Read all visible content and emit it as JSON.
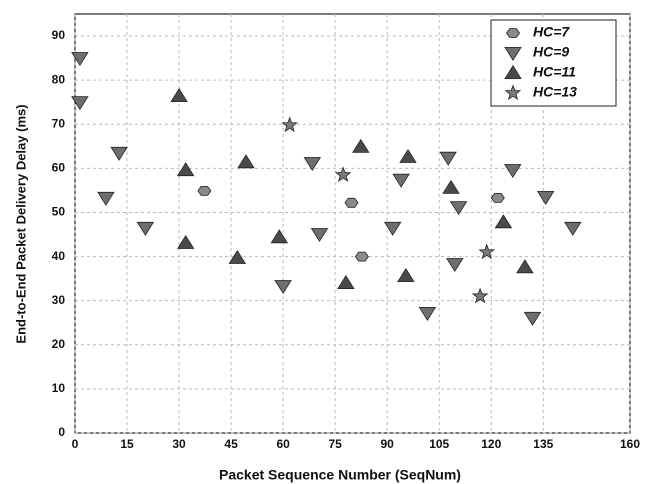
{
  "chart_data": {
    "type": "scatter",
    "xlabel": "Packet Sequence Number (SeqNum)",
    "ylabel": "End-to-End Packet Delivery Delay (ms)",
    "xlim": [
      0,
      160
    ],
    "xticks": [
      0,
      15,
      30,
      45,
      60,
      75,
      90,
      105,
      120,
      135,
      160
    ],
    "ylim": [
      0,
      95
    ],
    "yticks": [
      0,
      10,
      20,
      30,
      40,
      50,
      60,
      70,
      80,
      90
    ],
    "grid": true,
    "legend": "upper right",
    "series": [
      {
        "name": "HC=7",
        "color": "#8a8a8a",
        "marker": "hexagon",
        "x": [
          37.3,
          79.7,
          82.7,
          121.9
        ],
        "y": [
          54.9,
          52.2,
          40.0,
          53.3
        ]
      },
      {
        "name": "HC=9",
        "color": "#6e6e6e",
        "marker": "triangle-down",
        "x": [
          1.4,
          1.4,
          12.7,
          8.9,
          20.3,
          60.0,
          68.4,
          70.5,
          94.0,
          91.6,
          101.6,
          107.6,
          110.6,
          109.5,
          126.2,
          131.9,
          135.7,
          143.5
        ],
        "y": [
          85.0,
          75.0,
          63.5,
          53.3,
          46.5,
          33.3,
          61.2,
          45.1,
          57.4,
          46.5,
          27.2,
          62.4,
          51.2,
          38.3,
          59.6,
          26.1,
          53.5,
          46.5
        ]
      },
      {
        "name": "HC=11",
        "color": "#4a4a4a",
        "marker": "triangle-up",
        "x": [
          30.0,
          31.9,
          31.9,
          46.8,
          49.3,
          58.9,
          78.1,
          82.4,
          96.0,
          95.4,
          108.4,
          123.5,
          129.7
        ],
        "y": [
          76.4,
          59.6,
          43.1,
          39.7,
          61.4,
          44.4,
          34.0,
          64.9,
          62.6,
          35.6,
          55.6,
          47.8,
          37.6
        ]
      },
      {
        "name": "HC=13",
        "color": "#7a7a7a",
        "marker": "star",
        "x": [
          61.9,
          77.3,
          118.7,
          116.8
        ],
        "y": [
          69.8,
          58.5,
          41.0,
          31.0
        ]
      }
    ]
  }
}
